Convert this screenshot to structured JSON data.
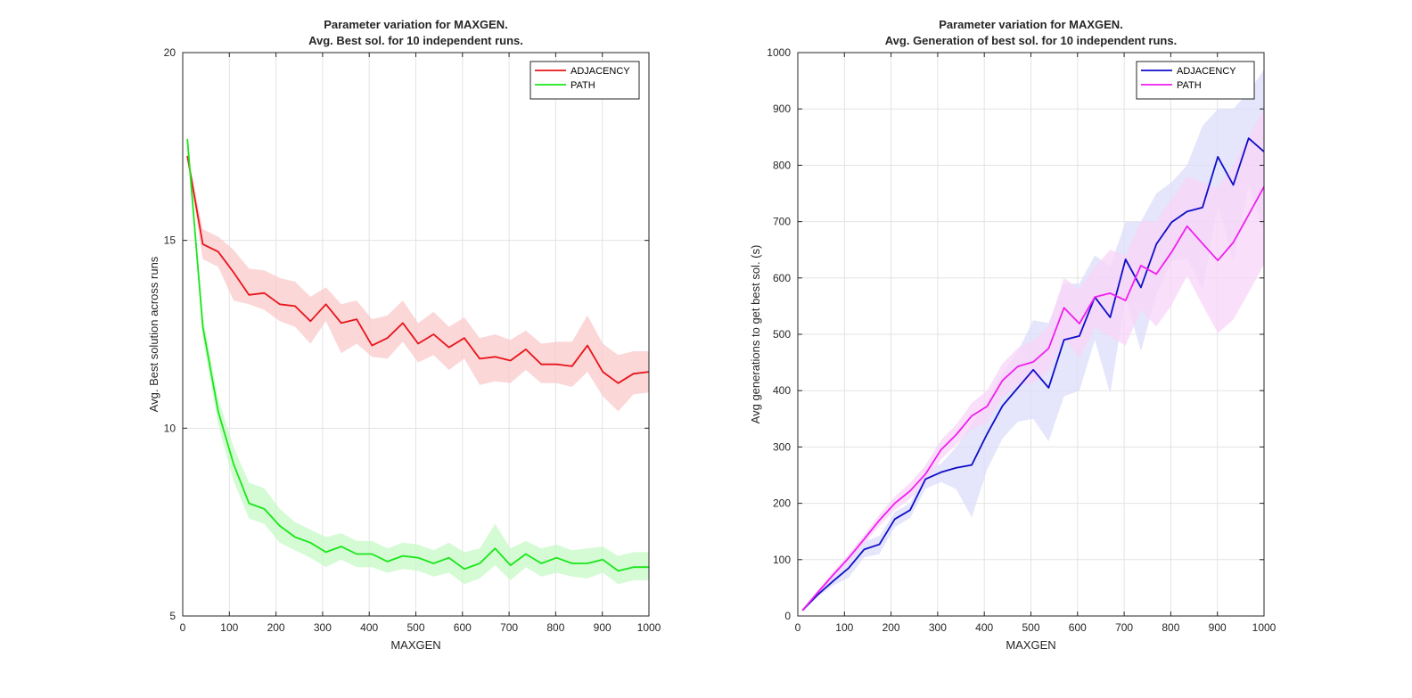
{
  "chart_data": [
    {
      "type": "line",
      "title": [
        "Parameter variation for MAXGEN.",
        "Avg. Best sol. for 10 independent runs."
      ],
      "xlabel": "MAXGEN",
      "ylabel": "Avg. Best solution across runs",
      "xlim": [
        0,
        1000
      ],
      "ylim": [
        5,
        20
      ],
      "xticks": [
        "0",
        "100",
        "200",
        "300",
        "400",
        "500",
        "600",
        "700",
        "800",
        "900",
        "1000"
      ],
      "yticks": [
        "5",
        "10",
        "15",
        "20"
      ],
      "grid": true,
      "legend_position": "top-right",
      "x": [
        10,
        43,
        76,
        109,
        142,
        175,
        208,
        241,
        274,
        307,
        340,
        373,
        406,
        439,
        472,
        505,
        538,
        571,
        604,
        637,
        670,
        703,
        736,
        769,
        802,
        835,
        868,
        901,
        934,
        967,
        1000
      ],
      "series": [
        {
          "name": "ADJACENCY",
          "color": "#e8141b",
          "band_color": "#f9c9cb",
          "values": [
            17.25,
            14.9,
            14.7,
            14.15,
            13.55,
            13.6,
            13.3,
            13.25,
            12.85,
            13.3,
            12.8,
            12.9,
            12.2,
            12.4,
            12.8,
            12.25,
            12.5,
            12.15,
            12.4,
            11.85,
            11.9,
            11.8,
            12.1,
            11.7,
            11.7,
            11.65,
            12.2,
            11.5,
            11.2,
            11.45,
            11.5
          ],
          "band_upper": [
            17.35,
            15.3,
            15.1,
            14.75,
            14.25,
            14.2,
            14.0,
            13.9,
            13.5,
            13.75,
            13.3,
            13.4,
            12.9,
            13.0,
            13.4,
            12.8,
            13.1,
            12.7,
            12.95,
            12.4,
            12.5,
            12.35,
            12.6,
            12.25,
            12.3,
            12.3,
            13.0,
            12.25,
            11.95,
            12.05,
            12.05
          ],
          "band_lower": [
            17.15,
            14.5,
            14.3,
            13.4,
            13.3,
            13.15,
            12.85,
            12.7,
            12.25,
            12.85,
            12.0,
            12.25,
            11.9,
            11.85,
            12.3,
            11.75,
            11.95,
            11.55,
            11.85,
            11.15,
            11.25,
            11.2,
            11.55,
            11.2,
            11.2,
            11.1,
            11.5,
            10.85,
            10.45,
            10.9,
            10.95
          ]
        },
        {
          "name": "PATH",
          "color": "#19e619",
          "band_color": "#c6f9c6",
          "values": [
            17.7,
            12.7,
            10.45,
            9.05,
            8.0,
            7.85,
            7.4,
            7.1,
            6.95,
            6.7,
            6.85,
            6.65,
            6.65,
            6.45,
            6.6,
            6.55,
            6.4,
            6.55,
            6.25,
            6.4,
            6.8,
            6.35,
            6.65,
            6.4,
            6.55,
            6.4,
            6.4,
            6.5,
            6.2,
            6.3,
            6.3
          ],
          "band_upper": [
            17.8,
            13.0,
            10.8,
            9.5,
            8.55,
            8.4,
            7.85,
            7.5,
            7.3,
            7.1,
            7.2,
            7.0,
            7.0,
            6.8,
            6.95,
            6.9,
            6.75,
            6.95,
            6.7,
            6.8,
            7.45,
            6.8,
            7.0,
            6.8,
            6.9,
            6.75,
            6.8,
            6.85,
            6.6,
            6.7,
            6.7
          ],
          "band_lower": [
            17.6,
            12.4,
            10.1,
            8.6,
            7.6,
            7.45,
            6.95,
            6.75,
            6.55,
            6.3,
            6.5,
            6.3,
            6.3,
            6.15,
            6.25,
            6.2,
            6.05,
            6.15,
            5.85,
            6.0,
            6.35,
            5.95,
            6.3,
            6.05,
            6.15,
            6.05,
            6.0,
            6.15,
            5.85,
            5.95,
            5.95
          ]
        }
      ]
    },
    {
      "type": "line",
      "title": [
        "Parameter variation for MAXGEN.",
        "Avg. Generation of best sol. for 10 independent runs."
      ],
      "xlabel": "MAXGEN",
      "ylabel": "Avg generations to get best sol. (s)",
      "xlim": [
        0,
        1000
      ],
      "ylim": [
        0,
        1000
      ],
      "xticks": [
        "0",
        "100",
        "200",
        "300",
        "400",
        "500",
        "600",
        "700",
        "800",
        "900",
        "1000"
      ],
      "yticks": [
        "0",
        "100",
        "200",
        "300",
        "400",
        "500",
        "600",
        "700",
        "800",
        "900",
        "1000"
      ],
      "grid": true,
      "legend_position": "top-right",
      "x": [
        10,
        43,
        76,
        109,
        142,
        175,
        208,
        241,
        274,
        307,
        340,
        373,
        406,
        439,
        472,
        505,
        538,
        571,
        604,
        637,
        670,
        703,
        736,
        769,
        802,
        835,
        868,
        901,
        934,
        967,
        1000
      ],
      "series": [
        {
          "name": "ADJACENCY",
          "color": "#0d0dc8",
          "band_color": "#dcdcfa",
          "values": [
            10,
            38,
            62,
            85,
            118,
            127,
            172,
            188,
            243,
            255,
            263,
            268,
            323,
            373,
            405,
            437,
            405,
            490,
            497,
            566,
            530,
            633,
            583,
            660,
            699,
            718,
            725,
            815,
            765,
            848,
            824
          ],
          "band_upper": [
            10,
            42,
            70,
            102,
            132,
            142,
            185,
            200,
            258,
            270,
            300,
            340,
            380,
            430,
            470,
            525,
            520,
            590,
            590,
            640,
            620,
            700,
            700,
            750,
            770,
            800,
            870,
            900,
            900,
            930,
            970
          ],
          "band_lower": [
            10,
            34,
            54,
            68,
            104,
            110,
            158,
            174,
            226,
            238,
            225,
            175,
            260,
            315,
            345,
            350,
            310,
            390,
            400,
            490,
            395,
            565,
            470,
            570,
            630,
            635,
            580,
            730,
            630,
            765,
            680
          ]
        },
        {
          "name": "PATH",
          "color": "#f01ef0",
          "band_color": "#f8d4f8",
          "values": [
            10,
            42,
            73,
            103,
            136,
            170,
            200,
            222,
            252,
            295,
            322,
            355,
            372,
            418,
            443,
            451,
            475,
            547,
            519,
            566,
            573,
            560,
            622,
            607,
            646,
            692,
            661,
            631,
            663,
            712,
            762
          ],
          "band_upper": [
            12,
            46,
            79,
            110,
            144,
            180,
            212,
            236,
            268,
            312,
            340,
            378,
            400,
            448,
            476,
            488,
            515,
            600,
            580,
            620,
            650,
            640,
            700,
            700,
            740,
            780,
            770,
            760,
            800,
            850,
            900
          ],
          "band_lower": [
            8,
            38,
            67,
            96,
            128,
            160,
            188,
            208,
            236,
            278,
            304,
            332,
            344,
            388,
            410,
            414,
            435,
            494,
            458,
            512,
            496,
            480,
            544,
            514,
            552,
            604,
            552,
            502,
            526,
            574,
            624
          ]
        }
      ]
    }
  ]
}
